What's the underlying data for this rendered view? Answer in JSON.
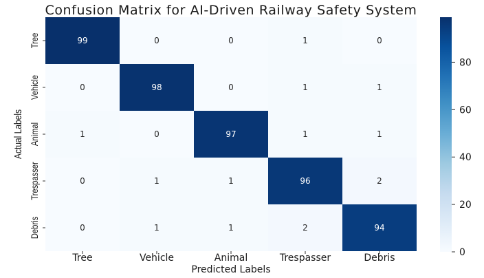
{
  "chart_data": {
    "type": "heatmap",
    "title": "Confusion Matrix for AI-Driven Railway Safety System",
    "xlabel": "Predicted Labels",
    "ylabel": "Actual Labels",
    "x_categories": [
      "Tree",
      "Vehicle",
      "Animal",
      "Trespasser",
      "Debris"
    ],
    "y_categories": [
      "Tree",
      "Vehicle",
      "Animal",
      "Trespasser",
      "Debris"
    ],
    "values": [
      [
        99,
        0,
        0,
        1,
        0
      ],
      [
        0,
        98,
        0,
        1,
        1
      ],
      [
        1,
        0,
        97,
        1,
        1
      ],
      [
        0,
        1,
        1,
        96,
        2
      ],
      [
        0,
        1,
        1,
        2,
        94
      ]
    ],
    "value_range": [
      0,
      99
    ],
    "colormap": {
      "low": "#f7fbff",
      "high": "#08306b"
    },
    "colorbar": {
      "ticks": [
        0,
        20,
        40,
        60,
        80
      ]
    }
  }
}
